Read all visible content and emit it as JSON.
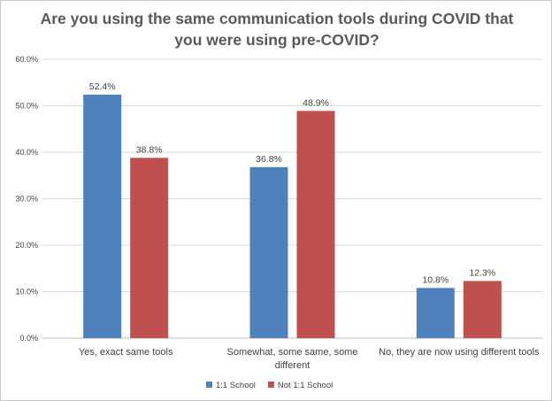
{
  "chart_data": {
    "type": "bar",
    "title_lines": [
      "Are you using the same communication tools during COVID that",
      "you were using pre-COVID?"
    ],
    "categories": [
      [
        "Yes, exact same tools"
      ],
      [
        "Somewhat, some same, some",
        "different"
      ],
      [
        "No, they are now using different tools"
      ]
    ],
    "series": [
      {
        "name": "1:1 School",
        "color": "#4f81bd",
        "values": [
          52.4,
          36.8,
          10.8
        ]
      },
      {
        "name": "Not 1:1 School",
        "color": "#c0504d",
        "values": [
          38.8,
          48.9,
          12.3
        ]
      }
    ],
    "data_labels": [
      [
        "52.4%",
        "36.8%",
        "10.8%"
      ],
      [
        "38.8%",
        "48.9%",
        "12.3%"
      ]
    ],
    "yticks": [
      0,
      10,
      20,
      30,
      40,
      50,
      60
    ],
    "ytick_labels": [
      "0.0%",
      "10.0%",
      "20.0%",
      "30.0%",
      "40.0%",
      "50.0%",
      "60.0%"
    ],
    "ylim": [
      0,
      60
    ],
    "grid": true,
    "legend_position": "bottom"
  }
}
